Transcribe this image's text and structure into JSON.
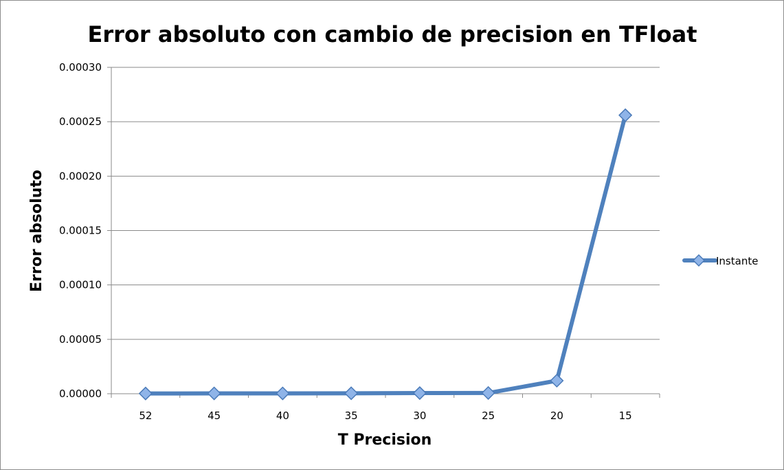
{
  "chart_data": {
    "type": "line",
    "title": "Error absoluto con cambio de precision en TFloat",
    "xlabel": "T Precision",
    "ylabel": "Error absoluto",
    "categories": [
      "52",
      "45",
      "40",
      "35",
      "30",
      "25",
      "20",
      "15"
    ],
    "y_ticks": [
      "0.00000",
      "0.00005",
      "0.00010",
      "0.00015",
      "0.00020",
      "0.00025",
      "0.00030"
    ],
    "ylim": [
      0,
      0.0003
    ],
    "grid": true,
    "legend_position": "right",
    "series": [
      {
        "name": "Instante",
        "color": "#4f81bd",
        "marker": "diamond",
        "values": [
          2e-07,
          3e-07,
          3e-07,
          4e-07,
          6e-07,
          7e-07,
          1.2e-05,
          0.000256
        ]
      }
    ]
  }
}
